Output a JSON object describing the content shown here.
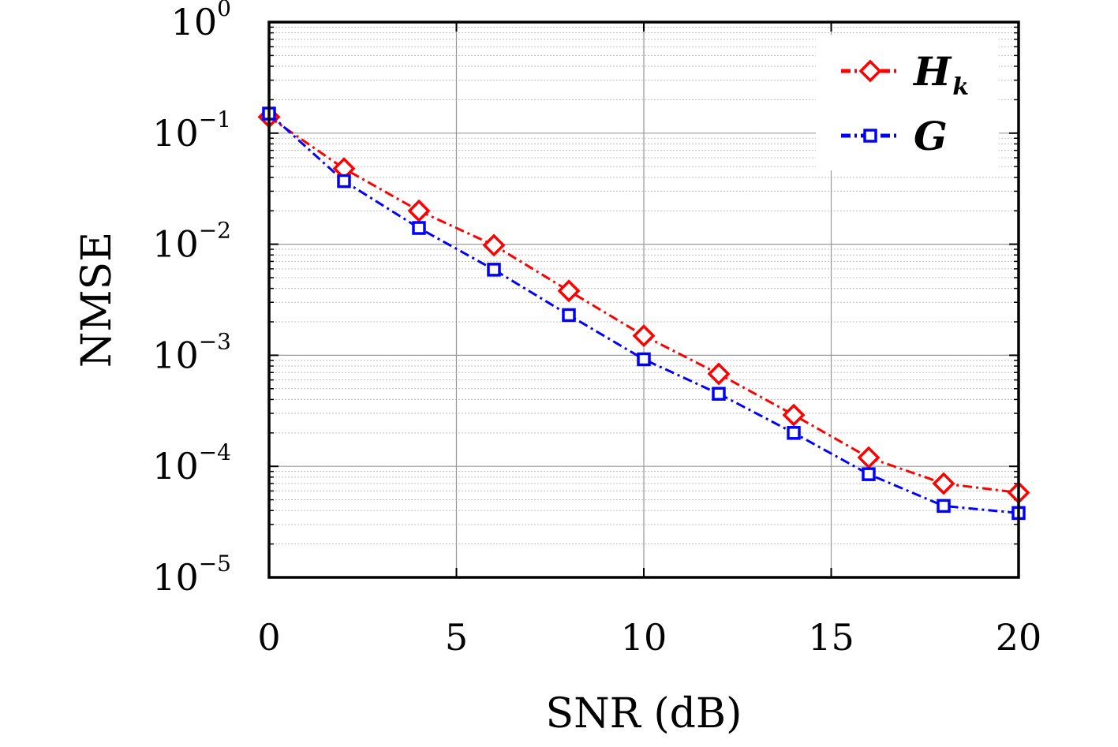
{
  "chart_data": {
    "type": "line",
    "xlabel": "SNR (dB)",
    "ylabel": "NMSE",
    "xlim": [
      0,
      20
    ],
    "ylim": [
      1e-05,
      1
    ],
    "yscale": "log",
    "grid": true,
    "legend_position": "top-right",
    "x_ticks": [
      "0",
      "5",
      "10",
      "15",
      "20"
    ],
    "y_ticks": [
      {
        "base": "10",
        "exp": "0"
      },
      {
        "base": "10",
        "exp": "−1"
      },
      {
        "base": "10",
        "exp": "−2"
      },
      {
        "base": "10",
        "exp": "−3"
      },
      {
        "base": "10",
        "exp": "−4"
      },
      {
        "base": "10",
        "exp": "−5"
      }
    ],
    "x": [
      0,
      2,
      4,
      6,
      8,
      10,
      12,
      14,
      16,
      18,
      20
    ],
    "series": [
      {
        "name": "H",
        "name_sub": "k",
        "color": "#ff0000",
        "marker": "diamond",
        "values": [
          0.14,
          0.048,
          0.02,
          0.0098,
          0.0038,
          0.0015,
          0.00068,
          0.00029,
          0.00012,
          7e-05,
          5.8e-05
        ]
      },
      {
        "name": "G",
        "name_sub": "",
        "color": "#0000ff",
        "marker": "square",
        "values": [
          0.15,
          0.037,
          0.014,
          0.0059,
          0.0023,
          0.00092,
          0.00045,
          0.0002,
          8.5e-05,
          4.4e-05,
          3.8e-05
        ]
      }
    ]
  }
}
